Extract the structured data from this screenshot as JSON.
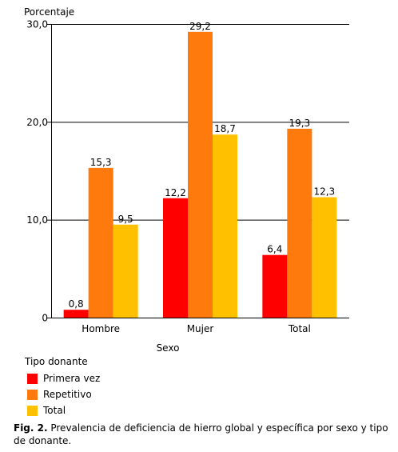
{
  "chart_data": {
    "type": "bar",
    "ylabel": "Porcentaje",
    "xlabel": "Sexo",
    "categories": [
      "Hombre",
      "Mujer",
      "Total"
    ],
    "ylim": [
      0,
      30
    ],
    "yticks": [
      {
        "value": 0,
        "label": "0"
      },
      {
        "value": 10,
        "label": "10,0"
      },
      {
        "value": 20,
        "label": "20,0"
      },
      {
        "value": 30,
        "label": "30,0"
      }
    ],
    "grid": true,
    "legend_title": "Tipo donante",
    "legend_position": "bottom-left",
    "series": [
      {
        "name": "Primera vez",
        "color": "#ff0000",
        "values": [
          0.8,
          12.2,
          6.4
        ],
        "labels": [
          "0,8",
          "12,2",
          "6,4"
        ]
      },
      {
        "name": "Repetitivo",
        "color": "#ff7a0c",
        "values": [
          15.3,
          29.2,
          19.3
        ],
        "labels": [
          "15,3",
          "29,2",
          "19,3"
        ]
      },
      {
        "name": "Total",
        "color": "#ffc000",
        "values": [
          9.5,
          18.7,
          12.3
        ],
        "labels": [
          "9,5",
          "18,7",
          "12,3"
        ]
      }
    ]
  },
  "caption": {
    "label": "Fig. 2.",
    "text": " Prevalencia de deficiencia de hierro global y específica por sexo y tipo de donante."
  }
}
